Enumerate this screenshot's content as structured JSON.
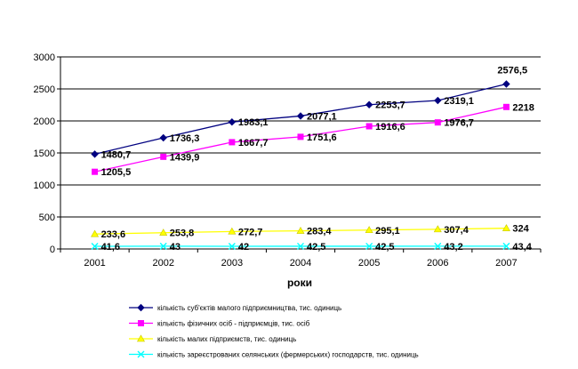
{
  "chart_data": {
    "type": "line",
    "title": "",
    "xlabel": "роки",
    "ylabel": "",
    "categories": [
      "2001",
      "2002",
      "2003",
      "2004",
      "2005",
      "2006",
      "2007"
    ],
    "ylim": [
      0,
      3000
    ],
    "yticks": [
      0,
      500,
      1000,
      1500,
      2000,
      2500,
      3000
    ],
    "grid": "horizontal",
    "legend_position": "bottom",
    "series": [
      {
        "name": "кількість суб'єктів малого підприємництва, тис. одиниць",
        "values": [
          1480.7,
          1736.3,
          1983.1,
          2077.1,
          2253.7,
          2319.1,
          2576.5
        ],
        "labels": [
          "1480,7",
          "1736,3",
          "1983,1",
          "2077,1",
          "2253,7",
          "2319,1",
          "2576,5"
        ],
        "color": "#000080",
        "marker": "diamond"
      },
      {
        "name": "кількість фізичних осіб - підприємців, тис. осіб",
        "values": [
          1205.5,
          1439.9,
          1667.7,
          1751.6,
          1916.6,
          1976.7,
          2218
        ],
        "labels": [
          "1205,5",
          "1439,9",
          "1667,7",
          "1751,6",
          "1916,6",
          "1976,7",
          "2218"
        ],
        "color": "#ff00ff",
        "marker": "square"
      },
      {
        "name": "кількість малих підприємств, тис. одиниць",
        "values": [
          233.6,
          253.8,
          272.7,
          283.4,
          295.1,
          307.4,
          324
        ],
        "labels": [
          "233,6",
          "253,8",
          "272,7",
          "283,4",
          "295,1",
          "307,4",
          "324"
        ],
        "color": "#ffff00",
        "marker": "triangle"
      },
      {
        "name": "кількість зареєстрованих селянських (фермерських) господарств, тис. одиниць",
        "values": [
          41.6,
          43,
          42,
          42.5,
          42.5,
          43.2,
          43.4
        ],
        "labels": [
          "41,6",
          "43",
          "42",
          "42,5",
          "42,5",
          "43,2",
          "43,4"
        ],
        "color": "#00ffff",
        "marker": "x"
      }
    ]
  }
}
